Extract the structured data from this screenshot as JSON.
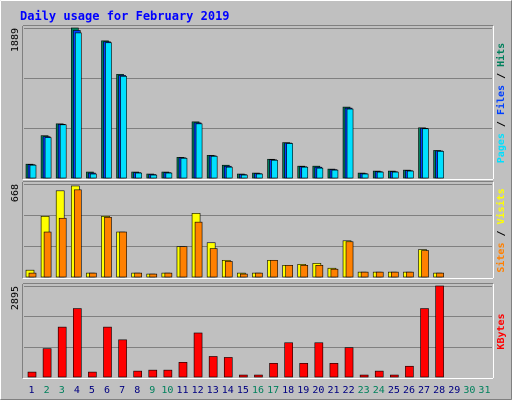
{
  "chart_data": {
    "type": "bar",
    "title": "Daily usage for February 2019",
    "categories": [
      "1",
      "2",
      "3",
      "4",
      "5",
      "6",
      "7",
      "8",
      "9",
      "10",
      "11",
      "12",
      "13",
      "14",
      "15",
      "16",
      "17",
      "18",
      "19",
      "20",
      "21",
      "22",
      "23",
      "24",
      "25",
      "26",
      "27",
      "28",
      "29",
      "30",
      "31"
    ],
    "category_colors": [
      "#000080",
      "#00805c",
      "#00805c",
      "#000080",
      "#000080",
      "#000080",
      "#000080",
      "#000080",
      "#00805c",
      "#00805c",
      "#000080",
      "#000080",
      "#000080",
      "#000080",
      "#000080",
      "#00805c",
      "#00805c",
      "#000080",
      "#000080",
      "#000080",
      "#000080",
      "#000080",
      "#00805c",
      "#00805c",
      "#000080",
      "#000080",
      "#000080",
      "#000080",
      "#000080",
      "#00805c",
      "#00805c"
    ],
    "panels": [
      {
        "ylim": [
          0,
          1889
        ],
        "yticks": [
          1889
        ],
        "ygrid": [
          630,
          1259
        ],
        "series": [
          {
            "name": "Hits",
            "color": "#00805c",
            "values": [
              174,
              533,
              682,
              1889,
              75,
              1727,
              1305,
              75,
              50,
              75,
              260,
              707,
              285,
              161,
              50,
              62,
              236,
              446,
              149,
              149,
              112,
              893,
              62,
              87,
              87,
              99,
              632,
              347,
              null,
              null,
              null
            ]
          },
          {
            "name": "Files",
            "color": "#0040ff",
            "values": [
              168,
              520,
              676,
              1858,
              62,
              1715,
              1292,
              68,
              44,
              68,
              254,
              694,
              279,
              148,
              44,
              56,
              230,
              440,
              142,
              136,
              106,
              880,
              56,
              80,
              80,
              93,
              626,
              341,
              null,
              null,
              null
            ]
          },
          {
            "name": "Pages",
            "color": "#00e0ff",
            "values": [
              161,
              508,
              670,
              1827,
              50,
              1703,
              1280,
              62,
              37,
              62,
              248,
              682,
              273,
              136,
              37,
              50,
              223,
              434,
              136,
              124,
              99,
              868,
              50,
              74,
              74,
              87,
              620,
              335,
              null,
              null,
              null
            ]
          }
        ]
      },
      {
        "ylim": [
          0,
          668
        ],
        "yticks": [
          668
        ],
        "ygrid": [
          223,
          445
        ],
        "series": [
          {
            "name": "Visits",
            "color": "#ffff00",
            "values": [
              49,
              436,
              619,
              654,
              28,
              436,
              323,
              28,
              21,
              28,
              218,
              457,
              246,
              120,
              28,
              28,
              120,
              84,
              91,
              98,
              63,
              260,
              35,
              35,
              35,
              35,
              197,
              28,
              null,
              null,
              null
            ]
          },
          {
            "name": "Sites",
            "color": "#ff8000",
            "values": [
              28,
              323,
              422,
              626,
              28,
              429,
              323,
              28,
              21,
              28,
              218,
              394,
              204,
              112,
              21,
              28,
              120,
              84,
              84,
              84,
              56,
              253,
              35,
              35,
              35,
              35,
              190,
              28,
              null,
              null,
              null
            ]
          }
        ]
      },
      {
        "ylim": [
          0,
          2895
        ],
        "yticks": [
          2895
        ],
        "ygrid": [
          965,
          1930
        ],
        "series": [
          {
            "name": "KBytes",
            "color": "#ff0000",
            "values": [
              156,
              902,
              1587,
              2177,
              156,
              1587,
              1182,
              187,
              218,
              218,
              467,
              1400,
              653,
              622,
              62,
              62,
              435,
              1089,
              435,
              1089,
              435,
              933,
              62,
              187,
              62,
              342,
              2177,
              2895,
              null,
              null,
              null
            ]
          }
        ]
      }
    ]
  }
}
